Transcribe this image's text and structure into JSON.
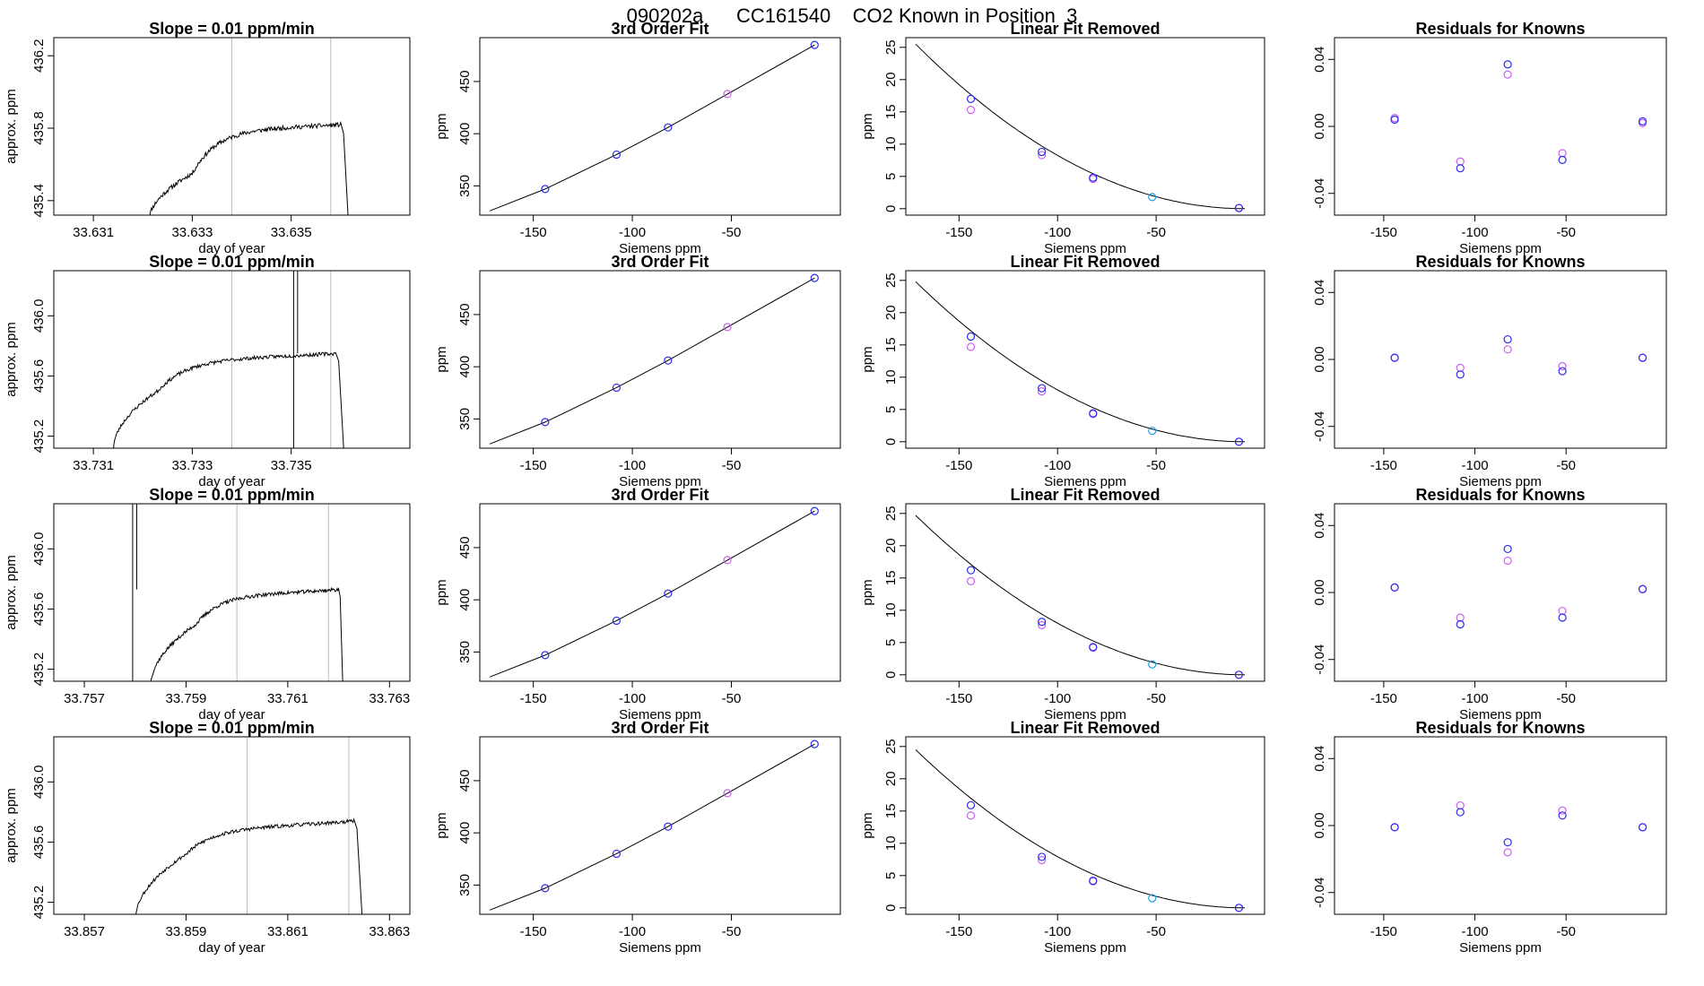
{
  "figure": {
    "title": "090202a      CC161540    CO2 Known in Position  3"
  },
  "colors": {
    "frame": "#000000",
    "line": "#000000",
    "vline": "#bdbdbd",
    "known_blue": "#2a2af0",
    "known_magenta": "#c860f0",
    "known_cyan": "#1ea0e6",
    "spike_red": "#ff4040"
  },
  "chart_data": [
    {
      "type": "line",
      "panel": "time",
      "row": 1,
      "title": "Slope =  0.01  ppm/min",
      "xlabel": "day of year",
      "ylabel": "approx. ppm",
      "xlim": [
        33.6302,
        33.6374
      ],
      "ylim": [
        435.32,
        436.3
      ],
      "xticks": [
        33.631,
        33.633,
        33.635
      ],
      "xtick_labels": [
        "33.631",
        "33.633",
        "33.635"
      ],
      "yticks": [
        435.4,
        435.8,
        436.2
      ],
      "ytick_labels": [
        "435.4",
        "435.8",
        "436.2"
      ],
      "vlines": [
        33.6338,
        33.6358
      ],
      "trace": {
        "x0": 33.6321,
        "rise": 33.633,
        "plateau_end": 33.636,
        "x1": 33.6362,
        "start": 435.27,
        "low": 435.55,
        "level": 435.8,
        "end_level": 435.82,
        "noise": 0.012,
        "seed": 11
      },
      "spikes": []
    },
    {
      "type": "scatter",
      "panel": "fit3",
      "row": 1,
      "title": "3rd Order Fit",
      "xlabel": "Siemens ppm",
      "ylabel": "ppm",
      "xlim": [
        -177,
        5
      ],
      "ylim": [
        322,
        492
      ],
      "xticks": [
        -150,
        -100,
        -50
      ],
      "xtick_labels": [
        "-150",
        "-100",
        "-50"
      ],
      "yticks": [
        350,
        400,
        450
      ],
      "ytick_labels": [
        "350",
        "400",
        "450"
      ],
      "curve": {
        "x": [
          -172,
          -144,
          -108,
          -82,
          -52,
          -8
        ],
        "y": [
          326,
          347,
          380,
          406,
          438,
          485
        ]
      },
      "points": {
        "x": [
          -144,
          -108,
          -82,
          -52,
          -8
        ],
        "y": [
          347,
          380,
          406,
          438,
          485
        ],
        "colors": [
          "#2a2af0",
          "#2a2af0",
          "#2a2af0",
          "#c860f0",
          "#2a2af0"
        ]
      }
    },
    {
      "type": "scatter",
      "panel": "linrem",
      "row": 1,
      "title": "Linear Fit Removed",
      "xlabel": "Siemens ppm",
      "ylabel": "ppm",
      "xlim": [
        -177,
        5
      ],
      "ylim": [
        -1,
        26.5
      ],
      "xticks": [
        -150,
        -100,
        -50
      ],
      "xtick_labels": [
        "-150",
        "-100",
        "-50"
      ],
      "yticks": [
        0,
        5,
        10,
        15,
        20,
        25
      ],
      "ytick_labels": [
        "0",
        "5",
        "10",
        "15",
        "20",
        "25"
      ],
      "curve": {
        "a": 25.5,
        "x0": -172,
        "x1": -5
      },
      "points": {
        "blue": {
          "x": [
            -144,
            -108,
            -82,
            -8
          ],
          "y": [
            17.0,
            8.8,
            4.8,
            0.1
          ]
        },
        "magenta": {
          "x": [
            -144,
            -108,
            -82,
            -8
          ],
          "y": [
            15.3,
            8.3,
            4.6,
            0.1
          ]
        },
        "cyan": {
          "x": [
            -52
          ],
          "y": [
            1.8
          ]
        }
      }
    },
    {
      "type": "scatter",
      "panel": "resid",
      "row": 1,
      "title": "Residuals for Knowns",
      "xlabel": "Siemens ppm",
      "ylabel": "",
      "xlim": [
        -177,
        5
      ],
      "ylim": [
        -0.053,
        0.053
      ],
      "xticks": [
        -150,
        -100,
        -50
      ],
      "xtick_labels": [
        "-150",
        "-100",
        "-50"
      ],
      "yticks": [
        -0.04,
        0.0,
        0.04
      ],
      "ytick_labels": [
        "-0.04",
        "0.00",
        "0.04"
      ],
      "points": {
        "blue": {
          "x": [
            -144,
            -108,
            -82,
            -52,
            -8
          ],
          "y": [
            0.004,
            -0.025,
            0.037,
            -0.02,
            0.003
          ]
        },
        "magenta": {
          "x": [
            -144,
            -108,
            -82,
            -52,
            -8
          ],
          "y": [
            0.005,
            -0.021,
            0.031,
            -0.016,
            0.002
          ]
        }
      }
    },
    {
      "type": "line",
      "panel": "time",
      "row": 2,
      "title": "Slope =  0.01  ppm/min",
      "xlabel": "day of year",
      "ylabel": "approx. ppm",
      "xlim": [
        33.7302,
        33.7374
      ],
      "ylim": [
        435.12,
        436.3
      ],
      "xticks": [
        33.731,
        33.733,
        33.735
      ],
      "xtick_labels": [
        "33.731",
        "33.733",
        "33.735"
      ],
      "yticks": [
        435.2,
        435.6,
        436.0
      ],
      "ytick_labels": [
        "435.2",
        "435.6",
        "436.0"
      ],
      "vlines": [
        33.7338,
        33.7358
      ],
      "trace": {
        "x0": 33.7314,
        "rise": 33.7323,
        "plateau_end": 33.7359,
        "x1": 33.7361,
        "start": 435.1,
        "low": 435.5,
        "level": 435.72,
        "end_level": 435.75,
        "noise": 0.012,
        "seed": 23
      },
      "spikes": [
        {
          "x": 33.73505,
          "w": 8e-05
        }
      ]
    },
    {
      "type": "scatter",
      "panel": "fit3",
      "row": 2,
      "title": "3rd Order Fit",
      "xlabel": "Siemens ppm",
      "ylabel": "ppm",
      "xlim": [
        -177,
        5
      ],
      "ylim": [
        322,
        492
      ],
      "xticks": [
        -150,
        -100,
        -50
      ],
      "xtick_labels": [
        "-150",
        "-100",
        "-50"
      ],
      "yticks": [
        350,
        400,
        450
      ],
      "ytick_labels": [
        "350",
        "400",
        "450"
      ],
      "curve": {
        "x": [
          -172,
          -144,
          -108,
          -82,
          -52,
          -8
        ],
        "y": [
          326,
          347,
          380,
          406,
          438,
          485
        ]
      },
      "points": {
        "x": [
          -144,
          -108,
          -82,
          -52,
          -8
        ],
        "y": [
          347,
          380,
          406,
          438,
          485
        ],
        "colors": [
          "#2a2af0",
          "#2a2af0",
          "#2a2af0",
          "#c860f0",
          "#2a2af0"
        ]
      }
    },
    {
      "type": "scatter",
      "panel": "linrem",
      "row": 2,
      "title": "Linear Fit Removed",
      "xlabel": "Siemens ppm",
      "ylabel": "ppm",
      "xlim": [
        -177,
        5
      ],
      "ylim": [
        -1,
        26.5
      ],
      "xticks": [
        -150,
        -100,
        -50
      ],
      "xtick_labels": [
        "-150",
        "-100",
        "-50"
      ],
      "yticks": [
        0,
        5,
        10,
        15,
        20,
        25
      ],
      "ytick_labels": [
        "0",
        "5",
        "10",
        "15",
        "20",
        "25"
      ],
      "curve": {
        "a": 24.8,
        "x0": -172,
        "x1": -5
      },
      "points": {
        "blue": {
          "x": [
            -144,
            -108,
            -82,
            -8
          ],
          "y": [
            16.3,
            8.3,
            4.4,
            0.0
          ]
        },
        "magenta": {
          "x": [
            -144,
            -108,
            -82,
            -8
          ],
          "y": [
            14.7,
            7.8,
            4.3,
            0.0
          ]
        },
        "cyan": {
          "x": [
            -52
          ],
          "y": [
            1.7
          ]
        }
      }
    },
    {
      "type": "scatter",
      "panel": "resid",
      "row": 2,
      "title": "Residuals for Knowns",
      "xlabel": "Siemens ppm",
      "ylabel": "",
      "xlim": [
        -177,
        5
      ],
      "ylim": [
        -0.053,
        0.053
      ],
      "xticks": [
        -150,
        -100,
        -50
      ],
      "xtick_labels": [
        "-150",
        "-100",
        "-50"
      ],
      "yticks": [
        -0.04,
        0.0,
        0.04
      ],
      "ytick_labels": [
        "-0.04",
        "0.00",
        "0.04"
      ],
      "points": {
        "blue": {
          "x": [
            -144,
            -108,
            -82,
            -52,
            -8
          ],
          "y": [
            0.001,
            -0.009,
            0.012,
            -0.007,
            0.001
          ]
        },
        "magenta": {
          "x": [
            -144,
            -108,
            -82,
            -52,
            -8
          ],
          "y": [
            0.001,
            -0.005,
            0.006,
            -0.004,
            0.001
          ]
        }
      }
    },
    {
      "type": "line",
      "panel": "time",
      "row": 3,
      "title": "Slope =  0.01  ppm/min",
      "xlabel": "day of year",
      "ylabel": "approx. ppm",
      "xlim": [
        33.7564,
        33.7634
      ],
      "ylim": [
        435.12,
        436.3
      ],
      "xticks": [
        33.757,
        33.759,
        33.761,
        33.763
      ],
      "xtick_labels": [
        "33.757",
        "33.759",
        "33.761",
        "33.763"
      ],
      "yticks": [
        435.2,
        435.6,
        436.0
      ],
      "ytick_labels": [
        "435.2",
        "435.6",
        "436.0"
      ],
      "vlines": [
        33.76,
        33.7618
      ],
      "trace": {
        "x0": 33.7583,
        "rise": 33.7592,
        "plateau_end": 33.762,
        "x1": 33.7621,
        "start": 435.08,
        "low": 435.5,
        "level": 435.7,
        "end_level": 435.73,
        "noise": 0.012,
        "seed": 37
      },
      "spikes": [
        {
          "x": 33.75795,
          "w": 8e-05
        }
      ]
    },
    {
      "type": "scatter",
      "panel": "fit3",
      "row": 3,
      "title": "3rd Order Fit",
      "xlabel": "Siemens ppm",
      "ylabel": "ppm",
      "xlim": [
        -177,
        5
      ],
      "ylim": [
        322,
        492
      ],
      "xticks": [
        -150,
        -100,
        -50
      ],
      "xtick_labels": [
        "-150",
        "-100",
        "-50"
      ],
      "yticks": [
        350,
        400,
        450
      ],
      "ytick_labels": [
        "350",
        "400",
        "450"
      ],
      "curve": {
        "x": [
          -172,
          -144,
          -108,
          -82,
          -52,
          -8
        ],
        "y": [
          326,
          347,
          380,
          406,
          438,
          485
        ]
      },
      "points": {
        "x": [
          -144,
          -108,
          -82,
          -52,
          -8
        ],
        "y": [
          347,
          380,
          406,
          438,
          485
        ],
        "colors": [
          "#2a2af0",
          "#2a2af0",
          "#2a2af0",
          "#c860f0",
          "#2a2af0"
        ]
      }
    },
    {
      "type": "scatter",
      "panel": "linrem",
      "row": 3,
      "title": "Linear Fit Removed",
      "xlabel": "Siemens ppm",
      "ylabel": "ppm",
      "xlim": [
        -177,
        5
      ],
      "ylim": [
        -1,
        26.5
      ],
      "xticks": [
        -150,
        -100,
        -50
      ],
      "xtick_labels": [
        "-150",
        "-100",
        "-50"
      ],
      "yticks": [
        0,
        5,
        10,
        15,
        20,
        25
      ],
      "ytick_labels": [
        "0",
        "5",
        "10",
        "15",
        "20",
        "25"
      ],
      "curve": {
        "a": 24.7,
        "x0": -172,
        "x1": -5
      },
      "points": {
        "blue": {
          "x": [
            -144,
            -108,
            -82,
            -8
          ],
          "y": [
            16.2,
            8.2,
            4.3,
            0.0
          ]
        },
        "magenta": {
          "x": [
            -144,
            -108,
            -82,
            -8
          ],
          "y": [
            14.5,
            7.7,
            4.2,
            0.0
          ]
        },
        "cyan": {
          "x": [
            -52
          ],
          "y": [
            1.6
          ]
        }
      }
    },
    {
      "type": "scatter",
      "panel": "resid",
      "row": 3,
      "title": "Residuals for Knowns",
      "xlabel": "Siemens ppm",
      "ylabel": "",
      "xlim": [
        -177,
        5
      ],
      "ylim": [
        -0.053,
        0.053
      ],
      "xticks": [
        -150,
        -100,
        -50
      ],
      "xtick_labels": [
        "-150",
        "-100",
        "-50"
      ],
      "yticks": [
        -0.04,
        0.0,
        0.04
      ],
      "ytick_labels": [
        "-0.04",
        "0.00",
        "0.04"
      ],
      "points": {
        "blue": {
          "x": [
            -144,
            -108,
            -82,
            -52,
            -8
          ],
          "y": [
            0.003,
            -0.019,
            0.026,
            -0.015,
            0.002
          ]
        },
        "magenta": {
          "x": [
            -144,
            -108,
            -82,
            -52,
            -8
          ],
          "y": [
            0.003,
            -0.015,
            0.019,
            -0.011,
            0.002
          ]
        }
      }
    },
    {
      "type": "line",
      "panel": "time",
      "row": 4,
      "title": "Slope =  0.01  ppm/min",
      "xlabel": "day of year",
      "ylabel": "approx. ppm",
      "xlim": [
        33.8564,
        33.8634
      ],
      "ylim": [
        435.12,
        436.3
      ],
      "xticks": [
        33.857,
        33.859,
        33.861,
        33.863
      ],
      "xtick_labels": [
        "33.857",
        "33.859",
        "33.861",
        "33.863"
      ],
      "yticks": [
        435.2,
        435.6,
        436.0
      ],
      "ytick_labels": [
        "435.2",
        "435.6",
        "436.0"
      ],
      "vlines": [
        33.8602,
        33.8622
      ],
      "trace": {
        "x0": 33.858,
        "rise": 33.859,
        "plateau_end": 33.8623,
        "x1": 33.8625,
        "start": 435.08,
        "low": 435.52,
        "level": 435.7,
        "end_level": 435.74,
        "noise": 0.012,
        "seed": 53
      },
      "spikes": []
    },
    {
      "type": "scatter",
      "panel": "fit3",
      "row": 4,
      "title": "3rd Order Fit",
      "xlabel": "Siemens ppm",
      "ylabel": "ppm",
      "xlim": [
        -177,
        5
      ],
      "ylim": [
        322,
        492
      ],
      "xticks": [
        -150,
        -100,
        -50
      ],
      "xtick_labels": [
        "-150",
        "-100",
        "-50"
      ],
      "yticks": [
        350,
        400,
        450
      ],
      "ytick_labels": [
        "350",
        "400",
        "450"
      ],
      "curve": {
        "x": [
          -172,
          -144,
          -108,
          -82,
          -52,
          -8
        ],
        "y": [
          326,
          347,
          380,
          406,
          438,
          485
        ]
      },
      "points": {
        "x": [
          -144,
          -108,
          -82,
          -52,
          -8
        ],
        "y": [
          347,
          380,
          406,
          438,
          485
        ],
        "colors": [
          "#2a2af0",
          "#2a2af0",
          "#2a2af0",
          "#c860f0",
          "#2a2af0"
        ]
      }
    },
    {
      "type": "scatter",
      "panel": "linrem",
      "row": 4,
      "title": "Linear Fit Removed",
      "xlabel": "Siemens ppm",
      "ylabel": "ppm",
      "xlim": [
        -177,
        5
      ],
      "ylim": [
        -1,
        26.5
      ],
      "xticks": [
        -150,
        -100,
        -50
      ],
      "xtick_labels": [
        "-150",
        "-100",
        "-50"
      ],
      "yticks": [
        0,
        5,
        10,
        15,
        20,
        25
      ],
      "ytick_labels": [
        "0",
        "5",
        "10",
        "15",
        "20",
        "25"
      ],
      "curve": {
        "a": 24.5,
        "x0": -172,
        "x1": -5
      },
      "points": {
        "blue": {
          "x": [
            -144,
            -108,
            -82,
            -8
          ],
          "y": [
            15.9,
            7.9,
            4.2,
            0.0
          ]
        },
        "magenta": {
          "x": [
            -144,
            -108,
            -82,
            -8
          ],
          "y": [
            14.3,
            7.4,
            4.1,
            0.0
          ]
        },
        "cyan": {
          "x": [
            -52
          ],
          "y": [
            1.5
          ]
        }
      }
    },
    {
      "type": "scatter",
      "panel": "resid",
      "row": 4,
      "title": "Residuals for Knowns",
      "xlabel": "Siemens ppm",
      "ylabel": "",
      "xlim": [
        -177,
        5
      ],
      "ylim": [
        -0.053,
        0.053
      ],
      "xticks": [
        -150,
        -100,
        -50
      ],
      "xtick_labels": [
        "-150",
        "-100",
        "-50"
      ],
      "yticks": [
        -0.04,
        0.0,
        0.04
      ],
      "ytick_labels": [
        "-0.04",
        "0.00",
        "0.04"
      ],
      "points": {
        "blue": {
          "x": [
            -144,
            -108,
            -82,
            -52,
            -8
          ],
          "y": [
            -0.001,
            0.008,
            -0.01,
            0.006,
            -0.001
          ]
        },
        "magenta": {
          "x": [
            -144,
            -108,
            -82,
            -52,
            -8
          ],
          "y": [
            -0.001,
            0.012,
            -0.016,
            0.009,
            -0.001
          ]
        }
      }
    }
  ]
}
